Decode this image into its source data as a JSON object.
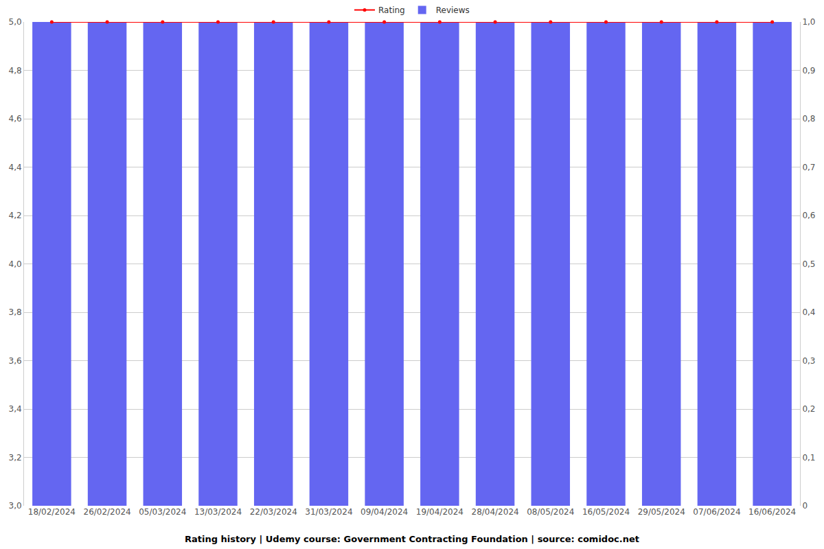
{
  "chart_data": {
    "type": "bar",
    "title": "Rating history | Udemy course: Government Contracting Foundation | source: comidoc.net",
    "categories": [
      "18/02/2024",
      "26/02/2024",
      "05/03/2024",
      "13/03/2024",
      "22/03/2024",
      "31/03/2024",
      "09/04/2024",
      "19/04/2024",
      "28/04/2024",
      "08/05/2024",
      "16/05/2024",
      "29/05/2024",
      "07/06/2024",
      "16/06/2024"
    ],
    "series": [
      {
        "name": "Rating",
        "type": "line",
        "marker": "circle",
        "color": "#ff0000",
        "values": [
          5.0,
          5.0,
          5.0,
          5.0,
          5.0,
          5.0,
          5.0,
          5.0,
          5.0,
          5.0,
          5.0,
          5.0,
          5.0,
          5.0
        ]
      },
      {
        "name": "Reviews",
        "type": "bar",
        "axis": "y2",
        "color": "#6466f1",
        "values": [
          1,
          1,
          1,
          1,
          1,
          1,
          1,
          1,
          1,
          1,
          1,
          1,
          1,
          1
        ]
      }
    ],
    "ylim": [
      3.0,
      5.0
    ],
    "yticks": [
      {
        "value": 3.0,
        "label": "3,0"
      },
      {
        "value": 3.2,
        "label": "3,2"
      },
      {
        "value": 3.4,
        "label": "3,4"
      },
      {
        "value": 3.6,
        "label": "3,6"
      },
      {
        "value": 3.8,
        "label": "3,8"
      },
      {
        "value": 4.0,
        "label": "4,0"
      },
      {
        "value": 4.2,
        "label": "4,2"
      },
      {
        "value": 4.4,
        "label": "4,4"
      },
      {
        "value": 4.6,
        "label": "4,6"
      },
      {
        "value": 4.8,
        "label": "4,8"
      },
      {
        "value": 5.0,
        "label": "5,0"
      }
    ],
    "y2lim": [
      0,
      1.0
    ],
    "y2ticks": [
      0,
      {
        "value": 0.1,
        "label": "0,1"
      },
      {
        "value": 0.2,
        "label": "0,2"
      },
      {
        "value": 0.3,
        "label": "0,3"
      },
      {
        "value": 0.4,
        "label": "0,4"
      },
      {
        "value": 0.5,
        "label": "0,5"
      },
      {
        "value": 0.6,
        "label": "0,6"
      },
      {
        "value": 0.7,
        "label": "0,7"
      },
      {
        "value": 0.8,
        "label": "0,8"
      },
      {
        "value": 0.9,
        "label": "0,9"
      },
      {
        "value": 1.0,
        "label": "1,0"
      }
    ],
    "grid": true,
    "legend": "top"
  }
}
